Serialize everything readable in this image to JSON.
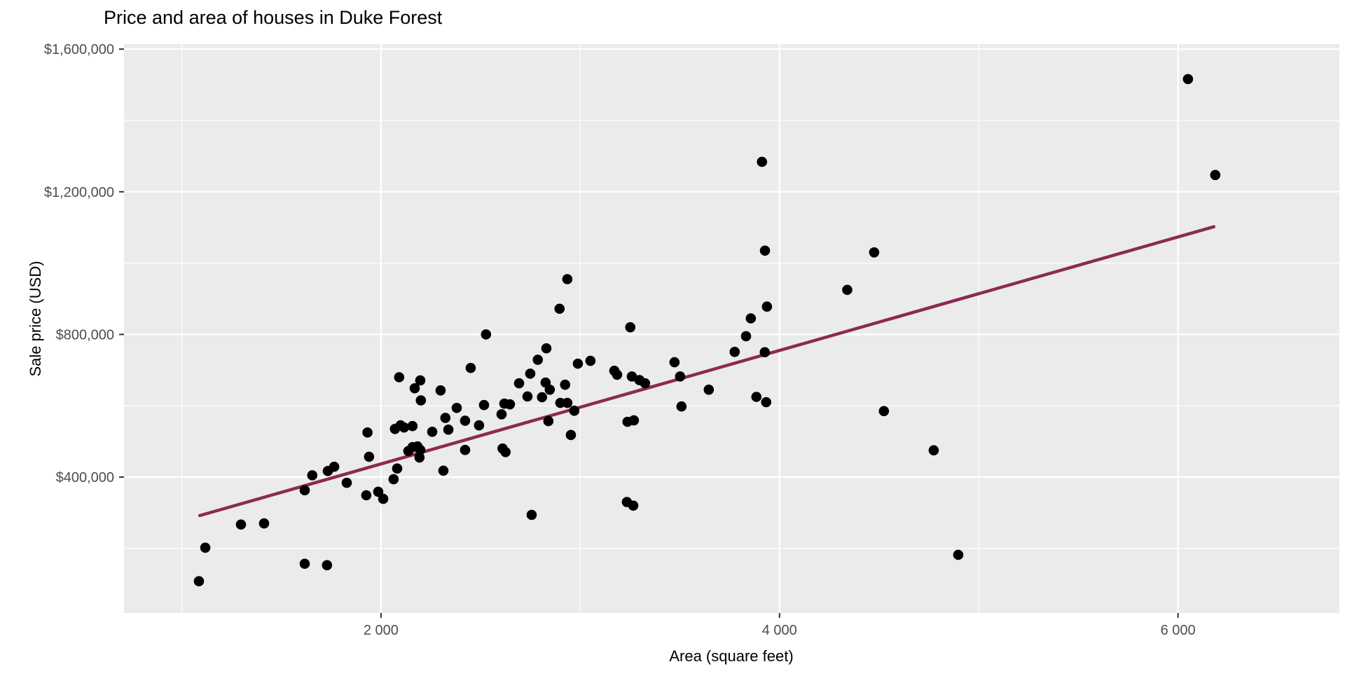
{
  "title": "Price and area of houses in Duke Forest",
  "chart_data": {
    "type": "scatter",
    "title": "Price and area of houses in Duke Forest",
    "xlabel": "Area (square feet)",
    "ylabel": "Sale price (USD)",
    "legend": "none",
    "grid": true,
    "xlim": [
      710,
      6810
    ],
    "ylim": [
      19000,
      1614000
    ],
    "x_ticks": [
      {
        "value": 2000,
        "label": "2 000"
      },
      {
        "value": 4000,
        "label": "4 000"
      },
      {
        "value": 6000,
        "label": "6 000"
      }
    ],
    "y_ticks": [
      {
        "value": 400000,
        "label": "$400,000"
      },
      {
        "value": 800000,
        "label": "$800,000"
      },
      {
        "value": 1200000,
        "label": "$1,200,000"
      },
      {
        "value": 1600000,
        "label": "$1,600,000"
      }
    ],
    "x_minor": [
      1000,
      3000,
      5000
    ],
    "y_minor": [
      200000,
      600000,
      1000000,
      1400000
    ],
    "trend_line": {
      "kind": "linear-regression",
      "x1": 1090,
      "y1": 292000,
      "x2": 6180,
      "y2": 1102000
    },
    "points": [
      [
        1086,
        108000
      ],
      [
        1118,
        202000
      ],
      [
        1297,
        267000
      ],
      [
        1413,
        270000
      ],
      [
        1617,
        363000
      ],
      [
        1655,
        405000
      ],
      [
        1617,
        157000
      ],
      [
        1729,
        153000
      ],
      [
        1733,
        417000
      ],
      [
        1765,
        429000
      ],
      [
        1828,
        384000
      ],
      [
        1926,
        349000
      ],
      [
        1986,
        359000
      ],
      [
        2011,
        339000
      ],
      [
        1932,
        525000
      ],
      [
        1940,
        457000
      ],
      [
        2063,
        394000
      ],
      [
        2081,
        424000
      ],
      [
        2091,
        680000
      ],
      [
        2197,
        671000
      ],
      [
        2169,
        649000
      ],
      [
        2200,
        615000
      ],
      [
        2299,
        643000
      ],
      [
        2527,
        800000
      ],
      [
        2450,
        706000
      ],
      [
        2517,
        602000
      ],
      [
        2380,
        594000
      ],
      [
        2323,
        566000
      ],
      [
        2070,
        535000
      ],
      [
        2098,
        545000
      ],
      [
        2116,
        539000
      ],
      [
        2158,
        543000
      ],
      [
        2158,
        484000
      ],
      [
        2137,
        473000
      ],
      [
        2183,
        486000
      ],
      [
        2197,
        476000
      ],
      [
        2193,
        455000
      ],
      [
        2257,
        527000
      ],
      [
        2338,
        533000
      ],
      [
        2422,
        558000
      ],
      [
        2313,
        418000
      ],
      [
        2422,
        476000
      ],
      [
        2492,
        545000
      ],
      [
        2605,
        576000
      ],
      [
        2619,
        606000
      ],
      [
        2647,
        604000
      ],
      [
        2610,
        480000
      ],
      [
        2625,
        470000
      ],
      [
        2735,
        626000
      ],
      [
        2756,
        294000
      ],
      [
        2808,
        624000
      ],
      [
        2830,
        761000
      ],
      [
        2787,
        729000
      ],
      [
        2749,
        690000
      ],
      [
        2693,
        663000
      ],
      [
        2826,
        665000
      ],
      [
        2847,
        645000
      ],
      [
        2924,
        659000
      ],
      [
        2988,
        718000
      ],
      [
        3051,
        726000
      ],
      [
        2896,
        872000
      ],
      [
        2935,
        955000
      ],
      [
        2900,
        608000
      ],
      [
        2935,
        608000
      ],
      [
        2970,
        586000
      ],
      [
        2840,
        557000
      ],
      [
        2953,
        518000
      ],
      [
        3171,
        698000
      ],
      [
        3185,
        687000
      ],
      [
        3259,
        682000
      ],
      [
        3297,
        672000
      ],
      [
        3325,
        663000
      ],
      [
        3237,
        555000
      ],
      [
        3269,
        559000
      ],
      [
        3234,
        330000
      ],
      [
        3266,
        320000
      ],
      [
        3251,
        820000
      ],
      [
        3473,
        722000
      ],
      [
        3501,
        682000
      ],
      [
        3508,
        598000
      ],
      [
        3645,
        645000
      ],
      [
        3775,
        751000
      ],
      [
        3832,
        795000
      ],
      [
        3926,
        750000
      ],
      [
        3912,
        1284000
      ],
      [
        3927,
        1035000
      ],
      [
        3937,
        878000
      ],
      [
        3856,
        845000
      ],
      [
        3884,
        625000
      ],
      [
        3933,
        610000
      ],
      [
        4340,
        925000
      ],
      [
        4475,
        1030000
      ],
      [
        4524,
        585000
      ],
      [
        4774,
        475000
      ],
      [
        4897,
        182000
      ],
      [
        6050,
        1516000
      ],
      [
        6187,
        1247000
      ]
    ],
    "colors": {
      "panel": "#EBEBEB",
      "grid": "#FFFFFF",
      "point": "#000000",
      "trend": "#8B2A54",
      "tick_text": "#4D4D4D",
      "tick_mark": "#333333",
      "text": "#000000",
      "background": "#FFFFFF"
    }
  }
}
